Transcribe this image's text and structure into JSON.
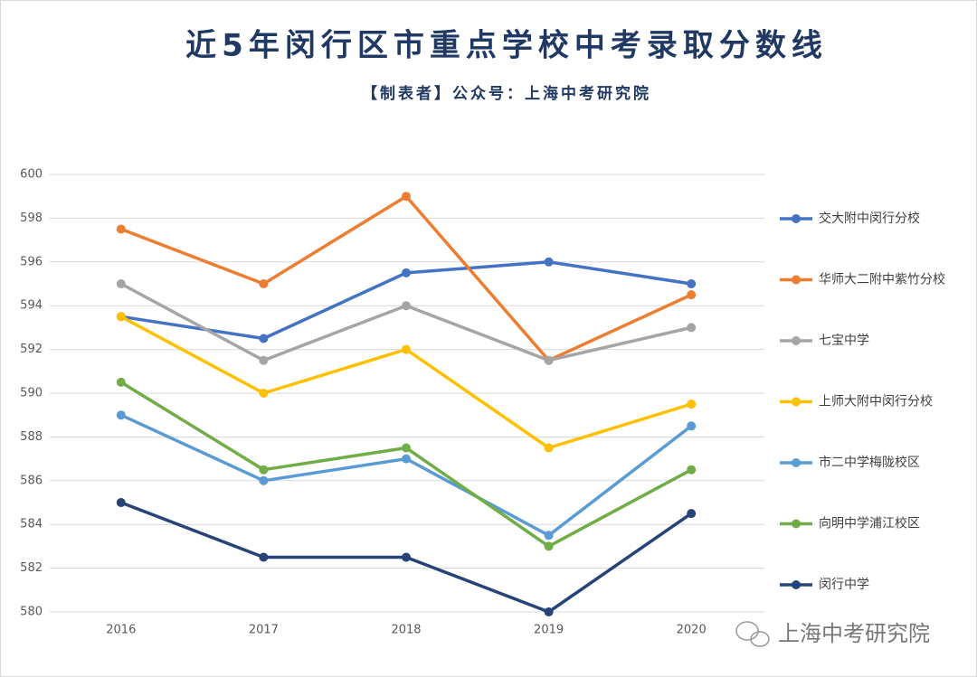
{
  "chart_data": {
    "type": "line",
    "title": "近5年闵行区市重点学校中考录取分数线",
    "subtitle": "【制表者】公众号：上海中考研究院",
    "watermark": "上海中考研究院",
    "categories": [
      "2016",
      "2017",
      "2018",
      "2019",
      "2020"
    ],
    "series": [
      {
        "name": "交大附中闵行分校",
        "color": "#4472c4",
        "values": [
          593.5,
          592.5,
          595.5,
          596,
          595
        ]
      },
      {
        "name": "华师大二附中紫竹分校",
        "color": "#ed7d31",
        "values": [
          597.5,
          595,
          599,
          591.5,
          594.5
        ]
      },
      {
        "name": "七宝中学",
        "color": "#a5a5a5",
        "values": [
          595,
          591.5,
          594,
          591.5,
          593
        ]
      },
      {
        "name": "上师大附中闵行分校",
        "color": "#ffc000",
        "values": [
          593.5,
          590,
          592,
          587.5,
          589.5
        ]
      },
      {
        "name": "市二中学梅陇校区",
        "color": "#5b9bd5",
        "values": [
          589,
          586,
          587,
          583.5,
          588.5
        ]
      },
      {
        "name": "向明中学浦江校区",
        "color": "#70ad47",
        "values": [
          590.5,
          586.5,
          587.5,
          583,
          586.5
        ]
      },
      {
        "name": "闵行中学",
        "color": "#264478",
        "values": [
          585,
          582.5,
          582.5,
          580,
          584.5
        ]
      }
    ],
    "ylim": [
      580,
      600
    ],
    "yticks": [
      580,
      582,
      584,
      586,
      588,
      590,
      592,
      594,
      596,
      598,
      600
    ],
    "grid": true,
    "legend": "right"
  }
}
